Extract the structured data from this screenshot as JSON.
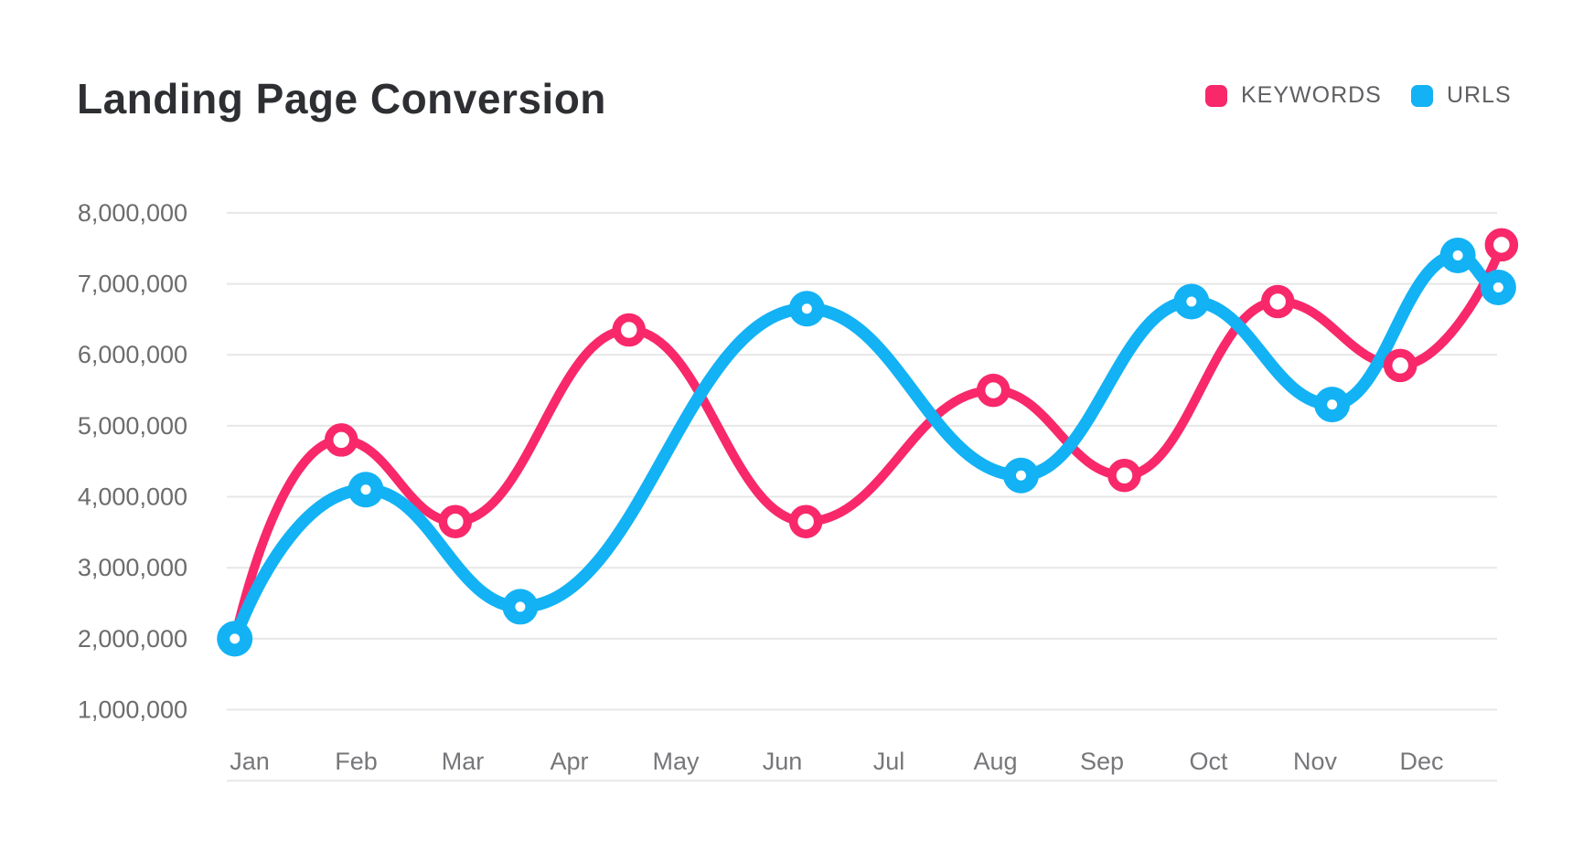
{
  "header": {
    "title": "Landing Page Conversion",
    "legend": [
      {
        "label": "KEYWORDS",
        "color": "#F8286B"
      },
      {
        "label": "URLS",
        "color": "#12B2F5"
      }
    ]
  },
  "chart_data": {
    "type": "line",
    "title": "Landing Page Conversion",
    "x_categories": [
      "Jan",
      "Feb",
      "Mar",
      "Apr",
      "May",
      "Jun",
      "Jul",
      "Aug",
      "Sep",
      "Oct",
      "Nov",
      "Dec"
    ],
    "x_unit": "month_index (1=Jan ... 12=Dec, fractional = between month ticks)",
    "y_tick_labels": [
      "8,000,000",
      "7,000,000",
      "6,000,000",
      "5,000,000",
      "4,000,000",
      "3,000,000",
      "2,000,000",
      "1,000,000"
    ],
    "y_tick_values": [
      8000000,
      7000000,
      6000000,
      5000000,
      4000000,
      3000000,
      2000000,
      1000000
    ],
    "y_range": [
      0,
      8000000
    ],
    "grid": true,
    "grid_color": "#E7E7E7",
    "legend_position": "top-right",
    "series": [
      {
        "name": "KEYWORDS",
        "color": "#F8286B",
        "marker_style": "ring",
        "line_width": 10,
        "points": [
          {
            "x": 0.86,
            "y": 2000000,
            "marker": false
          },
          {
            "x": 1.86,
            "y": 4800000,
            "marker": true
          },
          {
            "x": 2.93,
            "y": 3650000,
            "marker": true
          },
          {
            "x": 4.56,
            "y": 6350000,
            "marker": true
          },
          {
            "x": 6.22,
            "y": 3650000,
            "marker": true
          },
          {
            "x": 7.98,
            "y": 5500000,
            "marker": true
          },
          {
            "x": 9.21,
            "y": 4300000,
            "marker": true
          },
          {
            "x": 10.65,
            "y": 6750000,
            "marker": true
          },
          {
            "x": 11.8,
            "y": 5850000,
            "marker": true
          },
          {
            "x": 12.75,
            "y": 7550000,
            "marker": true
          }
        ]
      },
      {
        "name": "URLS",
        "color": "#12B2F5",
        "marker_style": "dot",
        "line_width": 13.5,
        "points": [
          {
            "x": 0.86,
            "y": 2000000,
            "marker": true
          },
          {
            "x": 2.09,
            "y": 4100000,
            "marker": true
          },
          {
            "x": 3.54,
            "y": 2450000,
            "marker": true
          },
          {
            "x": 6.23,
            "y": 6650000,
            "marker": true
          },
          {
            "x": 8.24,
            "y": 4300000,
            "marker": true
          },
          {
            "x": 9.84,
            "y": 6750000,
            "marker": true
          },
          {
            "x": 11.16,
            "y": 5300000,
            "marker": true
          },
          {
            "x": 12.34,
            "y": 7400000,
            "marker": true
          },
          {
            "x": 12.72,
            "y": 6950000,
            "marker": true
          }
        ]
      }
    ]
  }
}
